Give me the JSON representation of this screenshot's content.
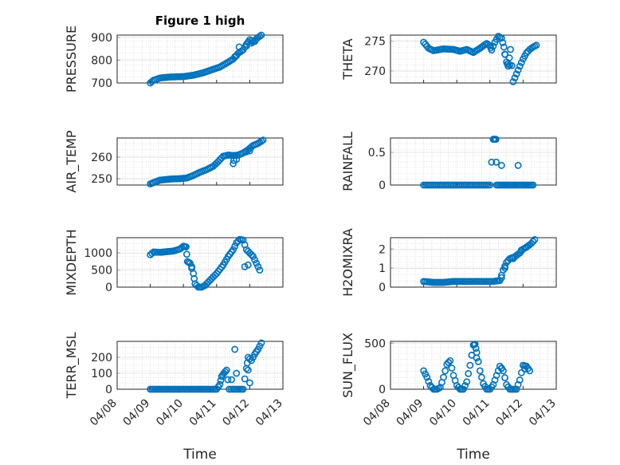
{
  "figure": {
    "title": "Figure 1 high",
    "xlabel": "Time"
  },
  "colors": {
    "marker": "#0072BD",
    "axes": "#262626",
    "grid": "#c8c8c8"
  },
  "chart_data": [
    {
      "type": "scatter",
      "panel": 1,
      "ylabel": "PRESSURE",
      "xlim": [
        "04/08",
        "04/13"
      ],
      "ylim": [
        700,
        910
      ],
      "yticks": [
        "700",
        "800",
        "900"
      ],
      "x_date_range": [
        "04/09",
        "04/12"
      ],
      "points": [
        [
          0,
          700
        ],
        [
          0.1,
          712
        ],
        [
          0.3,
          722
        ],
        [
          0.6,
          726
        ],
        [
          1.0,
          728
        ],
        [
          1.3,
          734
        ],
        [
          1.6,
          745
        ],
        [
          1.9,
          760
        ],
        [
          2.1,
          770
        ],
        [
          2.3,
          787
        ],
        [
          2.5,
          805
        ],
        [
          2.65,
          830
        ],
        [
          2.8,
          845
        ],
        [
          2.9,
          870
        ],
        [
          3.0,
          890
        ],
        [
          3.1,
          880
        ],
        [
          3.25,
          900
        ],
        [
          3.35,
          910
        ]
      ],
      "extra_points": [
        [
          2.55,
          815
        ],
        [
          2.6,
          820
        ],
        [
          2.68,
          858
        ],
        [
          2.9,
          862
        ],
        [
          3.05,
          875
        ],
        [
          3.15,
          882
        ]
      ]
    },
    {
      "type": "scatter",
      "panel": 2,
      "ylabel": "THETA",
      "xlim": [
        "04/08",
        "04/13"
      ],
      "ylim": [
        268,
        276
      ],
      "yticks": [
        "270",
        "275"
      ],
      "points": [
        [
          0,
          274.8
        ],
        [
          0.15,
          273.8
        ],
        [
          0.3,
          273.4
        ],
        [
          0.6,
          273.7
        ],
        [
          0.9,
          273.6
        ],
        [
          1.1,
          273.3
        ],
        [
          1.3,
          273.6
        ],
        [
          1.5,
          273.1
        ],
        [
          1.7,
          273.8
        ],
        [
          1.9,
          274.6
        ],
        [
          2.0,
          274.2
        ],
        [
          2.05,
          273.5
        ],
        [
          2.15,
          274.8
        ],
        [
          2.25,
          275.8
        ],
        [
          2.35,
          275.5
        ],
        [
          2.42,
          274.0
        ],
        [
          2.5,
          271.5
        ],
        [
          2.55,
          270.8
        ],
        [
          2.62,
          273.6
        ],
        [
          2.7,
          268.2
        ],
        [
          2.8,
          269.5
        ],
        [
          2.9,
          270.8
        ],
        [
          3.0,
          272.0
        ],
        [
          3.1,
          273.0
        ],
        [
          3.2,
          273.6
        ],
        [
          3.3,
          274.0
        ],
        [
          3.4,
          274.3
        ]
      ],
      "extra_points": [
        [
          2.45,
          272.8
        ],
        [
          2.55,
          271.2
        ],
        [
          2.6,
          271.0
        ]
      ]
    },
    {
      "type": "scatter",
      "panel": 3,
      "ylabel": "AIR_TEMP",
      "xlim": [
        "04/08",
        "04/13"
      ],
      "ylim": [
        247,
        269
      ],
      "yticks": [
        "250",
        "260"
      ],
      "points": [
        [
          0,
          247.5
        ],
        [
          0.1,
          248.2
        ],
        [
          0.3,
          249.3
        ],
        [
          0.6,
          249.8
        ],
        [
          0.9,
          250.0
        ],
        [
          1.1,
          250.3
        ],
        [
          1.3,
          251.5
        ],
        [
          1.5,
          253.0
        ],
        [
          1.7,
          254.2
        ],
        [
          1.9,
          255.8
        ],
        [
          2.05,
          258.0
        ],
        [
          2.2,
          260.5
        ],
        [
          2.35,
          261.0
        ],
        [
          2.5,
          260.8
        ],
        [
          2.65,
          261.0
        ],
        [
          2.8,
          262.0
        ],
        [
          2.95,
          263.5
        ],
        [
          3.1,
          265.5
        ],
        [
          3.25,
          266.5
        ],
        [
          3.4,
          268.0
        ]
      ],
      "extra_points": [
        [
          2.5,
          257.0
        ],
        [
          2.52,
          258.5
        ],
        [
          2.6,
          259.0
        ],
        [
          2.9,
          262.5
        ],
        [
          3.0,
          263.0
        ]
      ]
    },
    {
      "type": "scatter",
      "panel": 4,
      "ylabel": "RAINFALL",
      "xlim": [
        "04/08",
        "04/13"
      ],
      "ylim": [
        0,
        0.72
      ],
      "yticks": [
        "0",
        "0.5"
      ],
      "points": [
        [
          0,
          0
        ],
        [
          0.5,
          0
        ],
        [
          1.0,
          0
        ],
        [
          1.5,
          0
        ],
        [
          2.0,
          0
        ],
        [
          2.1,
          0.7
        ],
        [
          2.12,
          0.7
        ],
        [
          2.16,
          0.7
        ],
        [
          2.18,
          0.7
        ],
        [
          2.2,
          0
        ],
        [
          2.5,
          0
        ],
        [
          2.8,
          0
        ],
        [
          3.0,
          0
        ],
        [
          3.3,
          0
        ]
      ],
      "extra_points": [
        [
          2.35,
          0.3
        ],
        [
          2.85,
          0.3
        ]
      ]
    },
    {
      "type": "scatter",
      "panel": 5,
      "ylabel": "MIXDEPTH",
      "xlim": [
        "04/08",
        "04/13"
      ],
      "ylim": [
        0,
        1450
      ],
      "yticks": [
        "0",
        "500",
        "1000"
      ],
      "points": [
        [
          0,
          950
        ],
        [
          0.1,
          1030
        ],
        [
          0.3,
          1020
        ],
        [
          0.5,
          1040
        ],
        [
          0.7,
          1060
        ],
        [
          0.9,
          1120
        ],
        [
          1.0,
          1200
        ],
        [
          1.08,
          1180
        ],
        [
          1.12,
          750
        ],
        [
          1.2,
          700
        ],
        [
          1.3,
          400
        ],
        [
          1.35,
          100
        ],
        [
          1.45,
          0
        ],
        [
          1.55,
          0
        ],
        [
          1.65,
          50
        ],
        [
          1.8,
          200
        ],
        [
          2.0,
          400
        ],
        [
          2.2,
          650
        ],
        [
          2.35,
          900
        ],
        [
          2.5,
          1100
        ],
        [
          2.6,
          1300
        ],
        [
          2.7,
          1400
        ],
        [
          2.8,
          1380
        ],
        [
          2.9,
          1100
        ],
        [
          3.0,
          1000
        ],
        [
          3.1,
          900
        ],
        [
          3.2,
          700
        ],
        [
          3.3,
          500
        ]
      ],
      "extra_points": [
        [
          2.85,
          600
        ],
        [
          2.95,
          650
        ],
        [
          1.25,
          600
        ]
      ]
    },
    {
      "type": "scatter",
      "panel": 6,
      "ylabel": "H2OMIXRA",
      "xlim": [
        "04/08",
        "04/13"
      ],
      "ylim": [
        0,
        2.6
      ],
      "yticks": [
        "0",
        "1",
        "2"
      ],
      "points": [
        [
          0,
          0.3
        ],
        [
          0.3,
          0.25
        ],
        [
          0.6,
          0.25
        ],
        [
          0.9,
          0.3
        ],
        [
          1.2,
          0.3
        ],
        [
          1.5,
          0.3
        ],
        [
          1.8,
          0.3
        ],
        [
          2.1,
          0.3
        ],
        [
          2.3,
          0.35
        ],
        [
          2.4,
          0.9
        ],
        [
          2.5,
          1.3
        ],
        [
          2.6,
          1.5
        ],
        [
          2.75,
          1.6
        ],
        [
          2.9,
          1.8
        ],
        [
          3.0,
          2.0
        ],
        [
          3.1,
          2.1
        ],
        [
          3.25,
          2.3
        ],
        [
          3.35,
          2.5
        ]
      ],
      "extra_points": [
        [
          2.35,
          0.5
        ],
        [
          2.45,
          1.0
        ],
        [
          2.7,
          1.5
        ],
        [
          2.95,
          1.95
        ]
      ]
    },
    {
      "type": "scatter",
      "panel": 7,
      "ylabel": "TERR_MSL",
      "xlim": [
        "04/08",
        "04/13"
      ],
      "ylim": [
        0,
        300
      ],
      "yticks": [
        "0",
        "100",
        "200"
      ],
      "points": [
        [
          0,
          0
        ],
        [
          0.3,
          0
        ],
        [
          0.6,
          0
        ],
        [
          0.9,
          0
        ],
        [
          1.2,
          0
        ],
        [
          1.5,
          0
        ],
        [
          1.8,
          0
        ],
        [
          2.0,
          0
        ],
        [
          2.1,
          30
        ],
        [
          2.15,
          80
        ],
        [
          2.22,
          100
        ],
        [
          2.3,
          120
        ],
        [
          2.38,
          0
        ],
        [
          2.5,
          0
        ],
        [
          2.7,
          0
        ],
        [
          2.8,
          0
        ],
        [
          2.9,
          130
        ],
        [
          2.95,
          200
        ],
        [
          3.05,
          180
        ],
        [
          3.15,
          220
        ],
        [
          3.25,
          250
        ],
        [
          3.35,
          290
        ]
      ],
      "extra_points": [
        [
          2.45,
          60
        ],
        [
          2.55,
          250
        ],
        [
          2.6,
          100
        ],
        [
          2.95,
          120
        ],
        [
          3.0,
          40
        ]
      ]
    },
    {
      "type": "scatter",
      "panel": 8,
      "ylabel": "SUN_FLUX",
      "xlim": [
        "04/08",
        "04/13"
      ],
      "ylim": [
        0,
        520
      ],
      "yticks": [
        "0",
        "500"
      ],
      "points": [
        [
          0,
          200
        ],
        [
          0.1,
          130
        ],
        [
          0.2,
          40
        ],
        [
          0.3,
          0
        ],
        [
          0.4,
          0
        ],
        [
          0.5,
          20
        ],
        [
          0.6,
          130
        ],
        [
          0.7,
          270
        ],
        [
          0.8,
          310
        ],
        [
          0.9,
          150
        ],
        [
          1.0,
          40
        ],
        [
          1.1,
          0
        ],
        [
          1.2,
          0
        ],
        [
          1.3,
          80
        ],
        [
          1.4,
          260
        ],
        [
          1.5,
          480
        ],
        [
          1.55,
          490
        ],
        [
          1.6,
          400
        ],
        [
          1.7,
          200
        ],
        [
          1.8,
          60
        ],
        [
          1.9,
          0
        ],
        [
          2.0,
          0
        ],
        [
          2.1,
          50
        ],
        [
          2.2,
          150
        ],
        [
          2.3,
          250
        ],
        [
          2.4,
          200
        ],
        [
          2.5,
          50
        ],
        [
          2.6,
          0
        ],
        [
          2.7,
          0
        ],
        [
          2.8,
          0
        ],
        [
          2.9,
          100
        ],
        [
          3.0,
          260
        ],
        [
          3.1,
          250
        ],
        [
          3.2,
          200
        ]
      ],
      "extra_points": [
        [
          1.45,
          370
        ],
        [
          1.6,
          340
        ],
        [
          0.75,
          290
        ],
        [
          2.35,
          230
        ],
        [
          3.05,
          220
        ]
      ]
    }
  ],
  "x_ticks": [
    "04/08",
    "04/09",
    "04/10",
    "04/11",
    "04/12",
    "04/13"
  ]
}
